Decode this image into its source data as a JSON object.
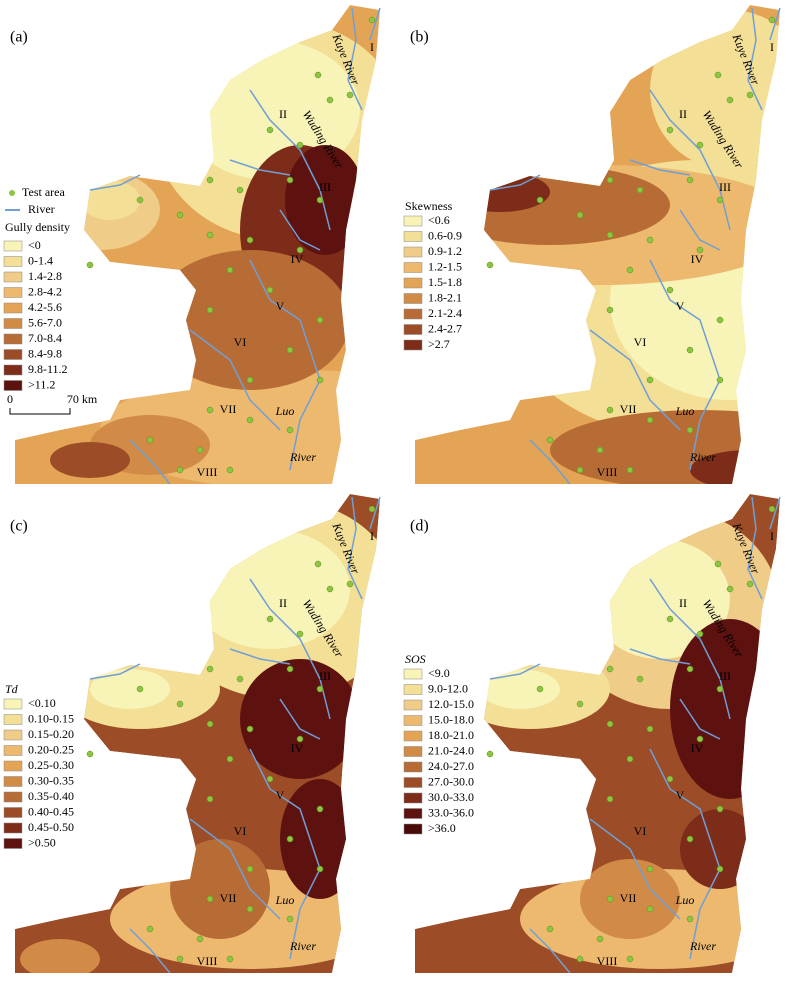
{
  "key": {
    "test_area": "Test area",
    "river": "River"
  },
  "scale": {
    "start": "0",
    "end": "70 km"
  },
  "panels": [
    {
      "label": "(a)",
      "legend": {
        "title": "Gully density",
        "items": [
          "<0",
          "0-1.4",
          "1.4-2.8",
          "2.8-4.2",
          "4.2-5.6",
          "5.6-7.0",
          "7.0-8.4",
          "8.4-9.8",
          "9.8-11.2",
          ">11.2"
        ]
      },
      "region_labels": [
        "I",
        "II",
        "III",
        "IV",
        "V",
        "VI",
        "VII",
        "VIII"
      ],
      "river_labels": [
        "Kuye River",
        "Wuding River",
        "Luo",
        "River"
      ]
    },
    {
      "label": "(b)",
      "legend": {
        "title": "Skewness",
        "items": [
          "<0.6",
          "0.6-0.9",
          "0.9-1.2",
          "1.2-1.5",
          "1.5-1.8",
          "1.8-2.1",
          "2.1-2.4",
          "2.4-2.7",
          ">2.7"
        ]
      },
      "region_labels": [
        "I",
        "II",
        "III",
        "IV",
        "V",
        "VI",
        "VII",
        "VIII"
      ],
      "river_labels": [
        "Kuye River",
        "Wuding River",
        "Luo",
        "River"
      ]
    },
    {
      "label": "(c)",
      "legend": {
        "title": "Td",
        "items": [
          "<0.10",
          "0.10-0.15",
          "0.15-0.20",
          "0.20-0.25",
          "0.25-0.30",
          "0.30-0.35",
          "0.35-0.40",
          "0.40-0.45",
          "0.45-0.50",
          ">0.50"
        ]
      },
      "region_labels": [
        "I",
        "II",
        "III",
        "IV",
        "V",
        "VI",
        "VII",
        "VIII"
      ],
      "river_labels": [
        "Kuye River",
        "Wuding River",
        "Luo",
        "River"
      ]
    },
    {
      "label": "(d)",
      "legend": {
        "title": "SOS",
        "items": [
          "<9.0",
          "9.0-12.0",
          "12.0-15.0",
          "15.0-18.0",
          "18.0-21.0",
          "21.0-24.0",
          "24.0-27.0",
          "27.0-30.0",
          "30.0-33.0",
          "33.0-36.0",
          ">36.0"
        ]
      },
      "region_labels": [
        "I",
        "II",
        "III",
        "IV",
        "V",
        "VI",
        "VII",
        "VIII"
      ],
      "river_labels": [
        "Kuye River",
        "Wuding River",
        "Luo",
        "River"
      ]
    }
  ]
}
